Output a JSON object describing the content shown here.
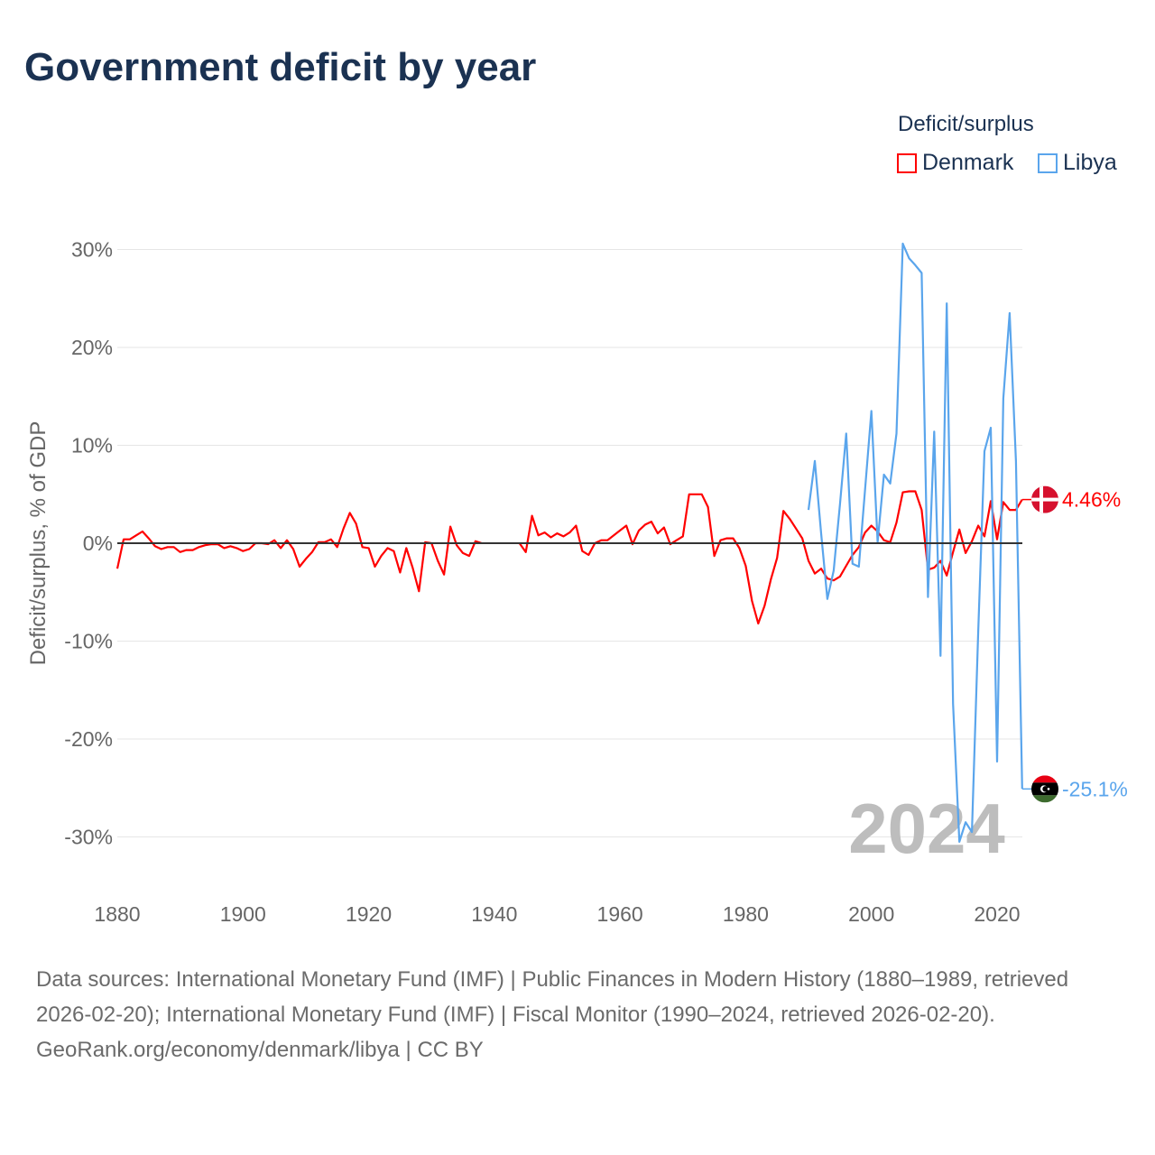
{
  "title": "Government deficit by year",
  "legend": {
    "title": "Deficit/surplus",
    "items": [
      {
        "name": "Denmark",
        "color": "#ff0000"
      },
      {
        "name": "Libya",
        "color": "#5aa5ec"
      }
    ]
  },
  "footer": {
    "sources": "Data sources: International Monetary Fund (IMF) | Public Finances in Modern History (1880–1989, retrieved 2026-02-20); International Monetary Fund (IMF) | Fiscal Monitor (1990–2024, retrieved 2026-02-20).",
    "credit": "GeoRank.org/economy/denmark/libya | CC BY"
  },
  "chart_data": {
    "type": "line",
    "title": "Government deficit by year",
    "xlabel": "",
    "ylabel": "Deficit/surplus, % of GDP",
    "xlim": [
      1880,
      2024
    ],
    "ylim": [
      -35,
      33
    ],
    "x_ticks": [
      "1880",
      "1900",
      "1920",
      "1940",
      "1960",
      "1980",
      "2000",
      "2020"
    ],
    "y_ticks": [
      "30%",
      "20%",
      "10%",
      "0%",
      "-10%",
      "-20%",
      "-30%"
    ],
    "grid": true,
    "watermark_year": "2024",
    "series": [
      {
        "name": "Denmark",
        "color": "#ff0000",
        "start_year": 1880,
        "end_label": "4.46%",
        "values": [
          -2.6,
          0.4,
          0.4,
          0.8,
          1.2,
          0.5,
          -0.3,
          -0.6,
          -0.4,
          -0.4,
          -0.9,
          -0.7,
          -0.7,
          -0.4,
          -0.2,
          -0.1,
          -0.1,
          -0.5,
          -0.3,
          -0.5,
          -0.8,
          -0.6,
          0.0,
          0.0,
          -0.1,
          0.3,
          -0.5,
          0.3,
          -0.6,
          -2.4,
          -1.6,
          -0.9,
          0.1,
          0.1,
          0.4,
          -0.4,
          1.5,
          3.1,
          2.0,
          -0.4,
          -0.5,
          -2.4,
          -1.3,
          -0.5,
          -0.8,
          -3.0,
          -0.5,
          -2.5,
          -4.9,
          0.1,
          0.0,
          -1.8,
          -3.2,
          1.7,
          -0.2,
          -1.0,
          -1.3,
          0.2,
          0.0,
          null,
          null,
          null,
          null,
          null,
          0.0,
          -0.9,
          2.8,
          0.8,
          1.1,
          0.6,
          1.0,
          0.7,
          1.1,
          1.8,
          -0.8,
          -1.2,
          0.0,
          0.3,
          0.3,
          0.8,
          1.3,
          1.8,
          -0.1,
          1.3,
          1.9,
          2.2,
          1.0,
          1.6,
          -0.1,
          0.3,
          0.7,
          5.0,
          5.0,
          5.0,
          3.7,
          -1.3,
          0.3,
          0.5,
          0.5,
          -0.5,
          -2.3,
          -5.9,
          -8.2,
          -6.4,
          -3.7,
          -1.5,
          3.3,
          2.5,
          1.5,
          0.5,
          -1.8,
          -3.1,
          -2.6,
          -3.6,
          -3.8,
          -3.4,
          -2.3,
          -1.2,
          -0.4,
          1.1,
          1.8,
          1.2,
          0.3,
          0.1,
          2.1,
          5.2,
          5.3,
          5.3,
          3.4,
          -2.7,
          -2.5,
          -1.8,
          -3.3,
          -0.9,
          1.4,
          -1.0,
          0.2,
          1.8,
          0.7,
          4.3,
          0.4,
          4.2,
          3.4,
          3.4,
          4.46
        ]
      },
      {
        "name": "Libya",
        "color": "#5aa5ec",
        "start_year": 1990,
        "end_label": "-25.1%",
        "values": [
          3.4,
          8.4,
          1.0,
          -5.7,
          -2.8,
          4.0,
          11.2,
          -2.1,
          -2.4,
          5.5,
          13.5,
          0.1,
          7.0,
          6.1,
          11.2,
          30.6,
          29.1,
          28.4,
          27.6,
          -5.5,
          11.4,
          -11.5,
          24.5,
          -16.4,
          -30.5,
          -28.5,
          -29.5,
          -9.0,
          9.4,
          11.8,
          -22.3,
          14.8,
          23.5,
          8.4,
          -25.1
        ]
      }
    ]
  }
}
